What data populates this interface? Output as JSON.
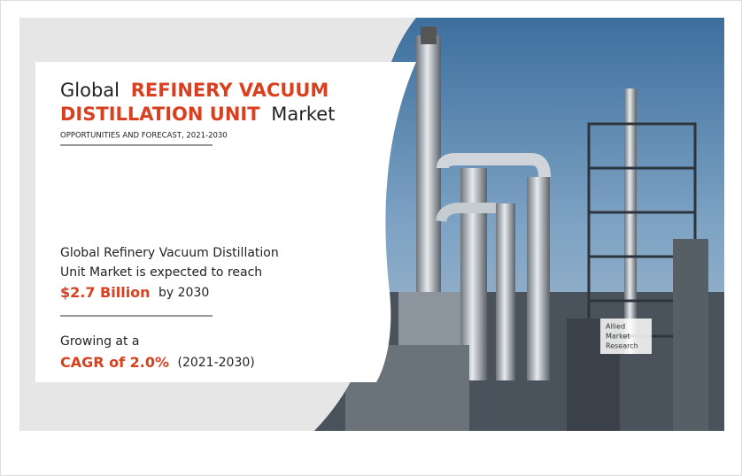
{
  "title": {
    "prefix": "Global",
    "highlight_line1": "REFINERY VACUUM",
    "highlight_line2": "DISTILLATION UNIT",
    "suffix": "Market"
  },
  "subtitle": "OPPORTUNITIES AND FORECAST, 2021-2030",
  "statement": {
    "line1": "Global Refinery Vacuum Distillation",
    "line2": "Unit Market is expected to reach",
    "value": "$2.7 Billion",
    "tail": "by 2030"
  },
  "growth": {
    "lead": "Growing at a",
    "value": "CAGR of 2.0%",
    "period": "(2021-2030)"
  },
  "logo": {
    "line1": "Allied",
    "line2": "Market",
    "line3": "Research"
  }
}
